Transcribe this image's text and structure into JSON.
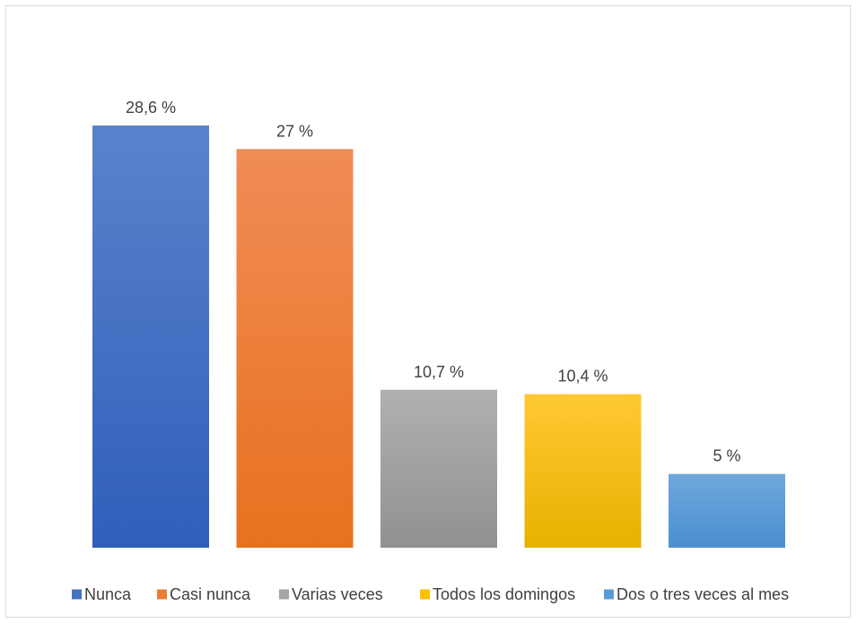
{
  "chart_data": {
    "type": "bar",
    "title": "",
    "xlabel": "",
    "ylabel": "",
    "ylim": [
      0,
      30
    ],
    "grid": false,
    "legend_position": "bottom",
    "categories": [
      "Nunca",
      "Casi nunca",
      "Varias veces",
      "Todos los domingos",
      "Dos o tres veces al mes"
    ],
    "values": [
      28.6,
      27,
      10.7,
      10.4,
      5
    ],
    "data_labels": [
      "28,6 %",
      "27 %",
      "10,7 %",
      "10,4 %",
      "5 %"
    ],
    "colors": [
      {
        "top": "#5b82cc",
        "bottom": "#2f5fba"
      },
      {
        "top": "#f08c56",
        "bottom": "#e8711e"
      },
      {
        "top": "#b0b0b0",
        "bottom": "#919191"
      },
      {
        "top": "#ffc933",
        "bottom": "#e6b200"
      },
      {
        "top": "#6fa8dc",
        "bottom": "#4a8fd0"
      }
    ],
    "legend_colors": [
      "#4472c4",
      "#ed7d31",
      "#a5a5a5",
      "#ffc000",
      "#5b9bd5"
    ]
  }
}
